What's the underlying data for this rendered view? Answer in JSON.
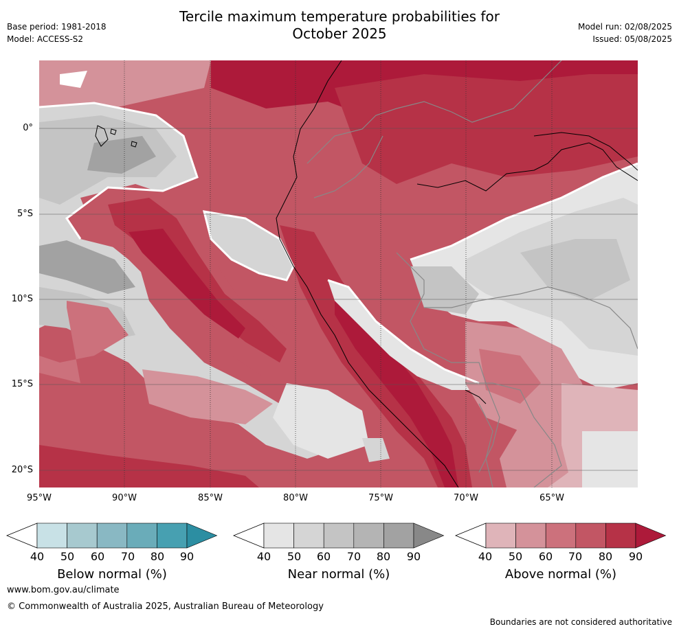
{
  "title": "Tercile maximum temperature probabilities for",
  "title_line2": "October 2025",
  "base_period": "Base period: 1981-2018",
  "model": "Model: ACCESS-S2",
  "model_run": "Model run: 02/08/2025",
  "issued": "Issued: 05/08/2025",
  "lat_labels": [
    "0°",
    "5°S",
    "10°S",
    "15°S",
    "20°S"
  ],
  "lon_labels": [
    "95°W",
    "90°W",
    "85°W",
    "80°W",
    "75°W",
    "70°W",
    "65°W"
  ],
  "colorbars": [
    {
      "title": "Below normal (%)",
      "ticks": [
        "40",
        "50",
        "60",
        "70",
        "80",
        "90"
      ],
      "colors": [
        "#c8e1e6",
        "#a7c9cf",
        "#89b8c3",
        "#6aacb9",
        "#47a0b1",
        "#2c8ea2"
      ]
    },
    {
      "title": "Near normal (%)",
      "ticks": [
        "40",
        "50",
        "60",
        "70",
        "80",
        "90"
      ],
      "colors": [
        "#e5e5e5",
        "#d5d5d5",
        "#c4c4c4",
        "#b4b4b4",
        "#a2a2a2",
        "#888888"
      ]
    },
    {
      "title": "Above normal (%)",
      "ticks": [
        "40",
        "50",
        "60",
        "70",
        "80",
        "90"
      ],
      "colors": [
        "#dfb4b9",
        "#d4929a",
        "#cc717c",
        "#c25664",
        "#b63247",
        "#ad1a3a"
      ]
    }
  ],
  "footer_url": "www.bom.gov.au/climate",
  "copyright": "© Commonwealth of Australia 2025, Australian Bureau of Meteorology",
  "disclaimer": "Boundaries are not considered authoritative"
}
